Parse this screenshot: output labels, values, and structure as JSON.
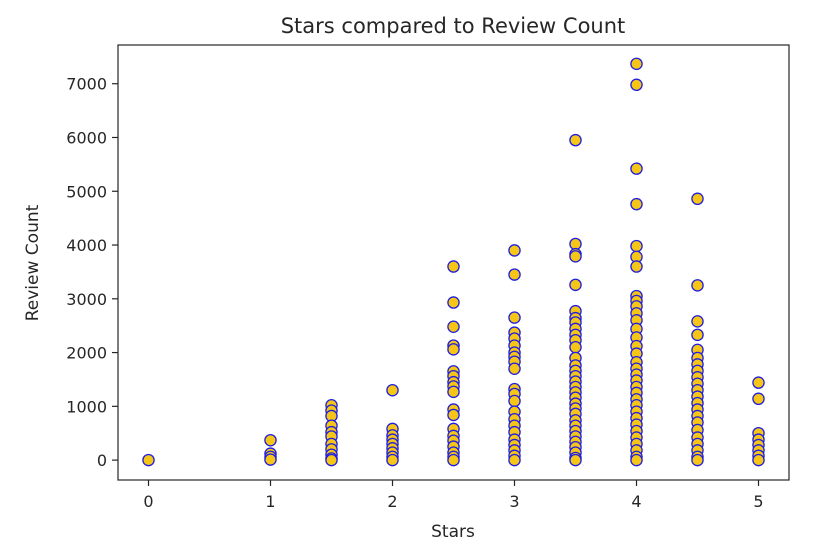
{
  "chart_data": {
    "type": "scatter",
    "title": "Stars compared to Review Count",
    "xlabel": "Stars",
    "ylabel": "Review Count",
    "xlim": [
      -0.25,
      5.25
    ],
    "ylim": [
      -370,
      7720
    ],
    "xticks": [
      0,
      1,
      2,
      3,
      4,
      5
    ],
    "xtick_labels": [
      "0",
      "1",
      "2",
      "3",
      "4",
      "5"
    ],
    "yticks": [
      0,
      1000,
      2000,
      3000,
      4000,
      5000,
      6000,
      7000
    ],
    "ytick_labels": [
      "0",
      "1000",
      "2000",
      "3000",
      "4000",
      "5000",
      "6000",
      "7000"
    ],
    "grid": false,
    "marker": {
      "face_color": "#f5c518",
      "edge_color": "#1f1fe0"
    },
    "series": [
      {
        "points": [
          [
            0,
            0
          ],
          [
            1,
            370
          ],
          [
            1,
            120
          ],
          [
            1,
            60
          ],
          [
            1,
            10
          ],
          [
            1.5,
            1020
          ],
          [
            1.5,
            920
          ],
          [
            1.5,
            820
          ],
          [
            1.5,
            640
          ],
          [
            1.5,
            520
          ],
          [
            1.5,
            440
          ],
          [
            1.5,
            300
          ],
          [
            1.5,
            200
          ],
          [
            1.5,
            100
          ],
          [
            1.5,
            30
          ],
          [
            1.5,
            0
          ],
          [
            2,
            1300
          ],
          [
            2,
            580
          ],
          [
            2,
            460
          ],
          [
            2,
            380
          ],
          [
            2,
            300
          ],
          [
            2,
            220
          ],
          [
            2,
            140
          ],
          [
            2,
            60
          ],
          [
            2,
            0
          ],
          [
            2.5,
            3600
          ],
          [
            2.5,
            2930
          ],
          [
            2.5,
            2480
          ],
          [
            2.5,
            2130
          ],
          [
            2.5,
            2060
          ],
          [
            2.5,
            1650
          ],
          [
            2.5,
            1560
          ],
          [
            2.5,
            1450
          ],
          [
            2.5,
            1370
          ],
          [
            2.5,
            1270
          ],
          [
            2.5,
            940
          ],
          [
            2.5,
            840
          ],
          [
            2.5,
            580
          ],
          [
            2.5,
            450
          ],
          [
            2.5,
            360
          ],
          [
            2.5,
            250
          ],
          [
            2.5,
            140
          ],
          [
            2.5,
            60
          ],
          [
            2.5,
            0
          ],
          [
            3,
            3900
          ],
          [
            3,
            3450
          ],
          [
            3,
            2650
          ],
          [
            3,
            2370
          ],
          [
            3,
            2260
          ],
          [
            3,
            2130
          ],
          [
            3,
            2000
          ],
          [
            3,
            1920
          ],
          [
            3,
            1830
          ],
          [
            3,
            1700
          ],
          [
            3,
            1320
          ],
          [
            3,
            1230
          ],
          [
            3,
            1100
          ],
          [
            3,
            900
          ],
          [
            3,
            760
          ],
          [
            3,
            640
          ],
          [
            3,
            520
          ],
          [
            3,
            380
          ],
          [
            3,
            280
          ],
          [
            3,
            180
          ],
          [
            3,
            80
          ],
          [
            3,
            0
          ],
          [
            3.5,
            5950
          ],
          [
            3.5,
            4020
          ],
          [
            3.5,
            3830
          ],
          [
            3.5,
            3790
          ],
          [
            3.5,
            3260
          ],
          [
            3.5,
            2770
          ],
          [
            3.5,
            2640
          ],
          [
            3.5,
            2560
          ],
          [
            3.5,
            2440
          ],
          [
            3.5,
            2330
          ],
          [
            3.5,
            2230
          ],
          [
            3.5,
            2100
          ],
          [
            3.5,
            1900
          ],
          [
            3.5,
            1760
          ],
          [
            3.5,
            1660
          ],
          [
            3.5,
            1560
          ],
          [
            3.5,
            1460
          ],
          [
            3.5,
            1360
          ],
          [
            3.5,
            1260
          ],
          [
            3.5,
            1160
          ],
          [
            3.5,
            1050
          ],
          [
            3.5,
            960
          ],
          [
            3.5,
            860
          ],
          [
            3.5,
            740
          ],
          [
            3.5,
            640
          ],
          [
            3.5,
            540
          ],
          [
            3.5,
            440
          ],
          [
            3.5,
            340
          ],
          [
            3.5,
            240
          ],
          [
            3.5,
            140
          ],
          [
            3.5,
            40
          ],
          [
            3.5,
            0
          ],
          [
            4,
            7370
          ],
          [
            4,
            6980
          ],
          [
            4,
            5420
          ],
          [
            4,
            4760
          ],
          [
            4,
            3980
          ],
          [
            4,
            3780
          ],
          [
            4,
            3600
          ],
          [
            4,
            3050
          ],
          [
            4,
            2960
          ],
          [
            4,
            2860
          ],
          [
            4,
            2730
          ],
          [
            4,
            2600
          ],
          [
            4,
            2440
          ],
          [
            4,
            2280
          ],
          [
            4,
            2120
          ],
          [
            4,
            1980
          ],
          [
            4,
            1820
          ],
          [
            4,
            1700
          ],
          [
            4,
            1590
          ],
          [
            4,
            1480
          ],
          [
            4,
            1360
          ],
          [
            4,
            1250
          ],
          [
            4,
            1130
          ],
          [
            4,
            1020
          ],
          [
            4,
            900
          ],
          [
            4,
            780
          ],
          [
            4,
            660
          ],
          [
            4,
            540
          ],
          [
            4,
            420
          ],
          [
            4,
            300
          ],
          [
            4,
            180
          ],
          [
            4,
            60
          ],
          [
            4,
            0
          ],
          [
            4.5,
            4860
          ],
          [
            4.5,
            3250
          ],
          [
            4.5,
            2580
          ],
          [
            4.5,
            2330
          ],
          [
            4.5,
            2050
          ],
          [
            4.5,
            1900
          ],
          [
            4.5,
            1780
          ],
          [
            4.5,
            1660
          ],
          [
            4.5,
            1540
          ],
          [
            4.5,
            1420
          ],
          [
            4.5,
            1300
          ],
          [
            4.5,
            1180
          ],
          [
            4.5,
            1060
          ],
          [
            4.5,
            940
          ],
          [
            4.5,
            820
          ],
          [
            4.5,
            700
          ],
          [
            4.5,
            560
          ],
          [
            4.5,
            420
          ],
          [
            4.5,
            300
          ],
          [
            4.5,
            180
          ],
          [
            4.5,
            60
          ],
          [
            4.5,
            0
          ],
          [
            5,
            1440
          ],
          [
            5,
            1140
          ],
          [
            5,
            500
          ],
          [
            5,
            380
          ],
          [
            5,
            280
          ],
          [
            5,
            180
          ],
          [
            5,
            80
          ],
          [
            5,
            0
          ]
        ]
      }
    ]
  }
}
